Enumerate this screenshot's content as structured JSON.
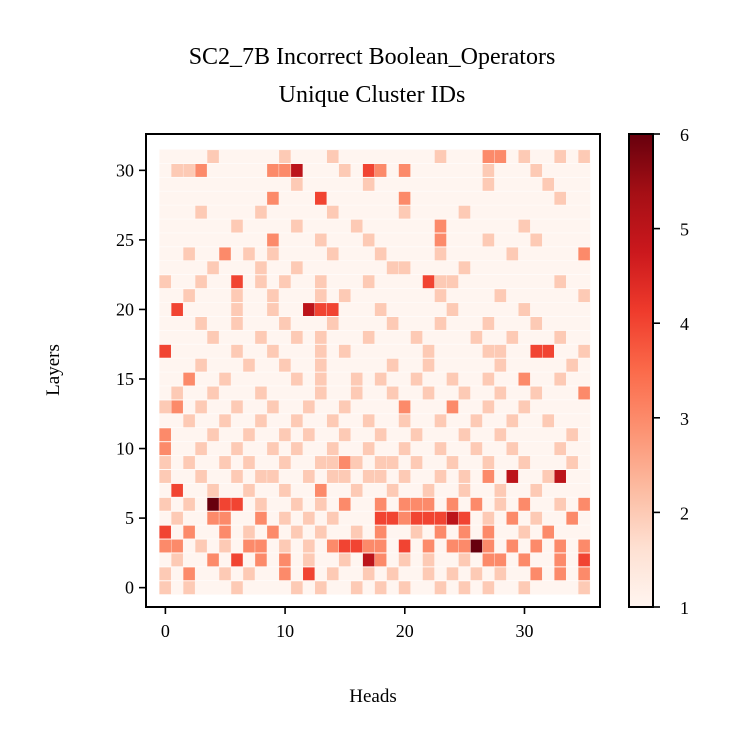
{
  "chart_data": {
    "type": "heatmap",
    "title_line1": "SC2_7B Incorrect Boolean_Operators",
    "title_line2": "Unique Cluster IDs",
    "xlabel": "Heads",
    "ylabel": "Layers",
    "x_ticks": [
      "0",
      "10",
      "20",
      "30"
    ],
    "y_ticks": [
      "0",
      "5",
      "10",
      "15",
      "20",
      "25",
      "30"
    ],
    "colorbar_ticks": [
      "1",
      "2",
      "3",
      "4",
      "5",
      "6"
    ],
    "n_heads": 36,
    "n_layers": 32,
    "vmin": 1,
    "vmax": 6,
    "colormap": "Reds",
    "cells": [
      [
        0,
        0,
        2
      ],
      [
        2,
        0,
        2
      ],
      [
        6,
        0,
        2
      ],
      [
        11,
        0,
        2
      ],
      [
        13,
        0,
        2
      ],
      [
        16,
        0,
        2
      ],
      [
        18,
        0,
        2
      ],
      [
        20,
        0,
        2
      ],
      [
        23,
        0,
        2
      ],
      [
        25,
        0,
        2
      ],
      [
        27,
        0,
        2
      ],
      [
        30,
        0,
        2
      ],
      [
        35,
        0,
        2
      ],
      [
        0,
        1,
        2
      ],
      [
        2,
        1,
        3
      ],
      [
        5,
        1,
        2
      ],
      [
        7,
        1,
        2
      ],
      [
        10,
        1,
        3
      ],
      [
        12,
        1,
        4
      ],
      [
        14,
        1,
        2
      ],
      [
        17,
        1,
        2
      ],
      [
        19,
        1,
        2
      ],
      [
        22,
        1,
        2
      ],
      [
        24,
        1,
        2
      ],
      [
        26,
        1,
        2
      ],
      [
        28,
        1,
        2
      ],
      [
        31,
        1,
        3
      ],
      [
        33,
        1,
        3
      ],
      [
        35,
        1,
        3
      ],
      [
        1,
        2,
        2
      ],
      [
        4,
        2,
        3
      ],
      [
        6,
        2,
        4
      ],
      [
        8,
        2,
        3
      ],
      [
        10,
        2,
        3
      ],
      [
        12,
        2,
        2
      ],
      [
        15,
        2,
        2
      ],
      [
        17,
        2,
        5
      ],
      [
        18,
        2,
        3
      ],
      [
        20,
        2,
        2
      ],
      [
        22,
        2,
        2
      ],
      [
        25,
        2,
        2
      ],
      [
        27,
        2,
        3
      ],
      [
        28,
        2,
        3
      ],
      [
        30,
        2,
        3
      ],
      [
        33,
        2,
        3
      ],
      [
        35,
        2,
        4
      ],
      [
        0,
        3,
        3
      ],
      [
        1,
        3,
        3
      ],
      [
        3,
        3,
        2
      ],
      [
        5,
        3,
        2
      ],
      [
        7,
        3,
        3
      ],
      [
        8,
        3,
        3
      ],
      [
        10,
        3,
        2
      ],
      [
        12,
        3,
        2
      ],
      [
        14,
        3,
        3
      ],
      [
        15,
        3,
        4
      ],
      [
        16,
        3,
        4
      ],
      [
        17,
        3,
        3
      ],
      [
        18,
        3,
        3
      ],
      [
        20,
        3,
        4
      ],
      [
        22,
        3,
        3
      ],
      [
        24,
        3,
        3
      ],
      [
        25,
        3,
        3
      ],
      [
        26,
        3,
        6
      ],
      [
        27,
        3,
        3
      ],
      [
        29,
        3,
        3
      ],
      [
        31,
        3,
        3
      ],
      [
        33,
        3,
        3
      ],
      [
        35,
        3,
        3
      ],
      [
        0,
        4,
        4
      ],
      [
        2,
        4,
        3
      ],
      [
        5,
        4,
        3
      ],
      [
        7,
        4,
        2
      ],
      [
        9,
        4,
        3
      ],
      [
        11,
        4,
        2
      ],
      [
        13,
        4,
        2
      ],
      [
        16,
        4,
        2
      ],
      [
        18,
        4,
        3
      ],
      [
        21,
        4,
        2
      ],
      [
        23,
        4,
        3
      ],
      [
        25,
        4,
        3
      ],
      [
        27,
        4,
        3
      ],
      [
        30,
        4,
        2
      ],
      [
        32,
        4,
        3
      ],
      [
        1,
        5,
        2
      ],
      [
        4,
        5,
        3
      ],
      [
        5,
        5,
        3
      ],
      [
        8,
        5,
        3
      ],
      [
        10,
        5,
        2
      ],
      [
        12,
        5,
        2
      ],
      [
        14,
        5,
        2
      ],
      [
        18,
        5,
        4
      ],
      [
        19,
        5,
        4
      ],
      [
        20,
        5,
        3
      ],
      [
        21,
        5,
        4
      ],
      [
        22,
        5,
        4
      ],
      [
        23,
        5,
        4
      ],
      [
        24,
        5,
        5
      ],
      [
        25,
        5,
        4
      ],
      [
        27,
        5,
        2
      ],
      [
        29,
        5,
        3
      ],
      [
        31,
        5,
        2
      ],
      [
        34,
        5,
        3
      ],
      [
        0,
        6,
        2
      ],
      [
        2,
        6,
        2
      ],
      [
        4,
        6,
        6
      ],
      [
        5,
        6,
        4
      ],
      [
        6,
        6,
        4
      ],
      [
        8,
        6,
        2
      ],
      [
        11,
        6,
        2
      ],
      [
        13,
        6,
        2
      ],
      [
        15,
        6,
        3
      ],
      [
        18,
        6,
        3
      ],
      [
        20,
        6,
        3
      ],
      [
        21,
        6,
        3
      ],
      [
        22,
        6,
        3
      ],
      [
        24,
        6,
        3
      ],
      [
        26,
        6,
        3
      ],
      [
        28,
        6,
        2
      ],
      [
        30,
        6,
        3
      ],
      [
        33,
        6,
        2
      ],
      [
        35,
        6,
        3
      ],
      [
        1,
        7,
        4
      ],
      [
        4,
        7,
        2
      ],
      [
        7,
        7,
        2
      ],
      [
        10,
        7,
        2
      ],
      [
        13,
        7,
        3
      ],
      [
        16,
        7,
        2
      ],
      [
        19,
        7,
        2
      ],
      [
        22,
        7,
        2
      ],
      [
        25,
        7,
        2
      ],
      [
        28,
        7,
        2
      ],
      [
        31,
        7,
        2
      ],
      [
        0,
        8,
        2
      ],
      [
        3,
        8,
        2
      ],
      [
        6,
        8,
        2
      ],
      [
        8,
        8,
        2
      ],
      [
        9,
        8,
        2
      ],
      [
        12,
        8,
        2
      ],
      [
        14,
        8,
        2
      ],
      [
        15,
        8,
        2
      ],
      [
        17,
        8,
        2
      ],
      [
        18,
        8,
        2
      ],
      [
        20,
        8,
        2
      ],
      [
        23,
        8,
        2
      ],
      [
        25,
        8,
        2
      ],
      [
        27,
        8,
        3
      ],
      [
        29,
        8,
        5
      ],
      [
        32,
        8,
        2
      ],
      [
        33,
        8,
        5
      ],
      [
        0,
        9,
        2
      ],
      [
        2,
        9,
        2
      ],
      [
        5,
        9,
        2
      ],
      [
        7,
        9,
        2
      ],
      [
        10,
        9,
        2
      ],
      [
        13,
        9,
        2
      ],
      [
        14,
        9,
        2
      ],
      [
        15,
        9,
        3
      ],
      [
        16,
        9,
        2
      ],
      [
        18,
        9,
        2
      ],
      [
        19,
        9,
        2
      ],
      [
        21,
        9,
        2
      ],
      [
        24,
        9,
        2
      ],
      [
        27,
        9,
        2
      ],
      [
        30,
        9,
        2
      ],
      [
        34,
        9,
        2
      ],
      [
        0,
        10,
        3
      ],
      [
        3,
        10,
        2
      ],
      [
        6,
        10,
        2
      ],
      [
        9,
        10,
        2
      ],
      [
        11,
        10,
        2
      ],
      [
        14,
        10,
        2
      ],
      [
        17,
        10,
        2
      ],
      [
        20,
        10,
        2
      ],
      [
        23,
        10,
        2
      ],
      [
        26,
        10,
        2
      ],
      [
        29,
        10,
        2
      ],
      [
        33,
        10,
        2
      ],
      [
        0,
        11,
        3
      ],
      [
        4,
        11,
        2
      ],
      [
        7,
        11,
        2
      ],
      [
        10,
        11,
        2
      ],
      [
        12,
        11,
        2
      ],
      [
        15,
        11,
        2
      ],
      [
        18,
        11,
        2
      ],
      [
        21,
        11,
        2
      ],
      [
        25,
        11,
        2
      ],
      [
        28,
        11,
        2
      ],
      [
        34,
        11,
        2
      ],
      [
        2,
        12,
        2
      ],
      [
        5,
        12,
        2
      ],
      [
        8,
        12,
        2
      ],
      [
        11,
        12,
        2
      ],
      [
        14,
        12,
        2
      ],
      [
        17,
        12,
        2
      ],
      [
        20,
        12,
        2
      ],
      [
        23,
        12,
        2
      ],
      [
        26,
        12,
        2
      ],
      [
        29,
        12,
        2
      ],
      [
        32,
        12,
        2
      ],
      [
        0,
        13,
        2
      ],
      [
        1,
        13,
        3
      ],
      [
        3,
        13,
        2
      ],
      [
        6,
        13,
        2
      ],
      [
        9,
        13,
        2
      ],
      [
        12,
        13,
        2
      ],
      [
        15,
        13,
        2
      ],
      [
        20,
        13,
        3
      ],
      [
        24,
        13,
        3
      ],
      [
        27,
        13,
        2
      ],
      [
        30,
        13,
        2
      ],
      [
        1,
        14,
        2
      ],
      [
        4,
        14,
        2
      ],
      [
        8,
        14,
        2
      ],
      [
        13,
        14,
        2
      ],
      [
        16,
        14,
        2
      ],
      [
        19,
        14,
        2
      ],
      [
        22,
        14,
        2
      ],
      [
        25,
        14,
        2
      ],
      [
        28,
        14,
        2
      ],
      [
        31,
        14,
        2
      ],
      [
        35,
        14,
        3
      ],
      [
        2,
        15,
        3
      ],
      [
        5,
        15,
        2
      ],
      [
        11,
        15,
        2
      ],
      [
        13,
        15,
        2
      ],
      [
        16,
        15,
        2
      ],
      [
        18,
        15,
        2
      ],
      [
        21,
        15,
        2
      ],
      [
        24,
        15,
        2
      ],
      [
        27,
        15,
        2
      ],
      [
        30,
        15,
        3
      ],
      [
        33,
        15,
        2
      ],
      [
        3,
        16,
        2
      ],
      [
        7,
        16,
        2
      ],
      [
        10,
        16,
        2
      ],
      [
        13,
        16,
        2
      ],
      [
        19,
        16,
        2
      ],
      [
        22,
        16,
        2
      ],
      [
        28,
        16,
        2
      ],
      [
        34,
        16,
        2
      ],
      [
        0,
        17,
        4
      ],
      [
        6,
        17,
        2
      ],
      [
        9,
        17,
        2
      ],
      [
        13,
        17,
        2
      ],
      [
        15,
        17,
        2
      ],
      [
        22,
        17,
        2
      ],
      [
        27,
        17,
        2
      ],
      [
        28,
        17,
        2
      ],
      [
        31,
        17,
        4
      ],
      [
        32,
        17,
        4
      ],
      [
        35,
        17,
        2
      ],
      [
        4,
        18,
        2
      ],
      [
        8,
        18,
        2
      ],
      [
        11,
        18,
        2
      ],
      [
        13,
        18,
        2
      ],
      [
        17,
        18,
        2
      ],
      [
        21,
        18,
        2
      ],
      [
        26,
        18,
        2
      ],
      [
        29,
        18,
        2
      ],
      [
        33,
        18,
        2
      ],
      [
        3,
        19,
        2
      ],
      [
        6,
        19,
        2
      ],
      [
        10,
        19,
        2
      ],
      [
        14,
        19,
        2
      ],
      [
        19,
        19,
        2
      ],
      [
        23,
        19,
        2
      ],
      [
        27,
        19,
        2
      ],
      [
        31,
        19,
        2
      ],
      [
        1,
        20,
        4
      ],
      [
        6,
        20,
        2
      ],
      [
        9,
        20,
        2
      ],
      [
        12,
        20,
        5
      ],
      [
        13,
        20,
        4
      ],
      [
        14,
        20,
        4
      ],
      [
        18,
        20,
        2
      ],
      [
        24,
        20,
        2
      ],
      [
        30,
        20,
        2
      ],
      [
        2,
        21,
        2
      ],
      [
        6,
        21,
        2
      ],
      [
        9,
        21,
        2
      ],
      [
        13,
        21,
        2
      ],
      [
        15,
        21,
        2
      ],
      [
        23,
        21,
        2
      ],
      [
        28,
        21,
        2
      ],
      [
        35,
        21,
        2
      ],
      [
        0,
        22,
        2
      ],
      [
        3,
        22,
        2
      ],
      [
        6,
        22,
        4
      ],
      [
        8,
        22,
        2
      ],
      [
        10,
        22,
        2
      ],
      [
        13,
        22,
        2
      ],
      [
        17,
        22,
        2
      ],
      [
        22,
        22,
        4
      ],
      [
        23,
        22,
        2
      ],
      [
        24,
        22,
        2
      ],
      [
        33,
        22,
        2
      ],
      [
        4,
        23,
        2
      ],
      [
        8,
        23,
        2
      ],
      [
        11,
        23,
        2
      ],
      [
        19,
        23,
        2
      ],
      [
        20,
        23,
        2
      ],
      [
        25,
        23,
        2
      ],
      [
        2,
        24,
        2
      ],
      [
        5,
        24,
        3
      ],
      [
        7,
        24,
        2
      ],
      [
        9,
        24,
        2
      ],
      [
        14,
        24,
        2
      ],
      [
        18,
        24,
        2
      ],
      [
        23,
        24,
        2
      ],
      [
        29,
        24,
        2
      ],
      [
        35,
        24,
        3
      ],
      [
        9,
        25,
        3
      ],
      [
        13,
        25,
        2
      ],
      [
        17,
        25,
        2
      ],
      [
        23,
        25,
        3
      ],
      [
        27,
        25,
        2
      ],
      [
        31,
        25,
        2
      ],
      [
        6,
        26,
        2
      ],
      [
        11,
        26,
        2
      ],
      [
        16,
        26,
        2
      ],
      [
        23,
        26,
        3
      ],
      [
        30,
        26,
        2
      ],
      [
        3,
        27,
        2
      ],
      [
        8,
        27,
        2
      ],
      [
        14,
        27,
        2
      ],
      [
        20,
        27,
        2
      ],
      [
        25,
        27,
        2
      ],
      [
        9,
        28,
        3
      ],
      [
        13,
        28,
        4
      ],
      [
        20,
        28,
        3
      ],
      [
        33,
        28,
        2
      ],
      [
        11,
        29,
        2
      ],
      [
        17,
        29,
        2
      ],
      [
        27,
        29,
        2
      ],
      [
        32,
        29,
        2
      ],
      [
        1,
        30,
        2
      ],
      [
        2,
        30,
        2
      ],
      [
        3,
        30,
        3
      ],
      [
        9,
        30,
        3
      ],
      [
        10,
        30,
        3
      ],
      [
        11,
        30,
        5
      ],
      [
        15,
        30,
        2
      ],
      [
        17,
        30,
        4
      ],
      [
        18,
        30,
        3
      ],
      [
        20,
        30,
        3
      ],
      [
        27,
        30,
        2
      ],
      [
        31,
        30,
        2
      ],
      [
        4,
        31,
        2
      ],
      [
        10,
        31,
        2
      ],
      [
        14,
        31,
        2
      ],
      [
        23,
        31,
        2
      ],
      [
        27,
        31,
        3
      ],
      [
        28,
        31,
        3
      ],
      [
        30,
        31,
        2
      ],
      [
        33,
        31,
        2
      ],
      [
        35,
        31,
        2
      ]
    ]
  }
}
